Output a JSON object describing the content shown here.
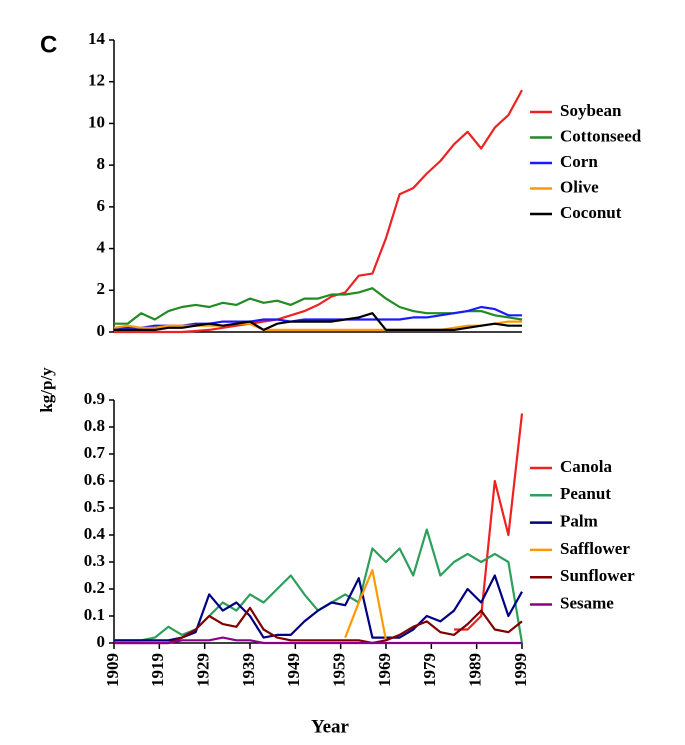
{
  "panel_label": "C",
  "y_label": "kg/p/y",
  "chart_data": [
    {
      "type": "line",
      "x": [
        1909,
        1912,
        1915,
        1918,
        1921,
        1924,
        1927,
        1930,
        1933,
        1936,
        1939,
        1942,
        1945,
        1948,
        1951,
        1954,
        1957,
        1960,
        1963,
        1966,
        1969,
        1972,
        1975,
        1978,
        1981,
        1984,
        1987,
        1990,
        1993,
        1996,
        1999
      ],
      "xlim": [
        1909,
        1999
      ],
      "ylim": [
        0,
        14
      ],
      "yticks": [
        0,
        2,
        4,
        6,
        8,
        10,
        12,
        14
      ],
      "series": [
        {
          "name": "Soybean",
          "color": "#ee2222",
          "values": [
            0,
            0,
            0,
            0,
            0,
            0,
            0.05,
            0.1,
            0.2,
            0.3,
            0.4,
            0.5,
            0.6,
            0.8,
            1.0,
            1.3,
            1.7,
            1.9,
            2.7,
            2.8,
            4.5,
            6.6,
            6.9,
            7.6,
            8.2,
            9.0,
            9.6,
            8.8,
            9.8,
            10.4,
            11.6
          ]
        },
        {
          "name": "Cottonseed",
          "color": "#228b22",
          "values": [
            0.4,
            0.4,
            0.9,
            0.6,
            1.0,
            1.2,
            1.3,
            1.2,
            1.4,
            1.3,
            1.6,
            1.4,
            1.5,
            1.3,
            1.6,
            1.6,
            1.8,
            1.8,
            1.9,
            2.1,
            1.6,
            1.2,
            1.0,
            0.9,
            0.9,
            0.9,
            1.0,
            1.0,
            0.8,
            0.7,
            0.6
          ]
        },
        {
          "name": "Corn",
          "color": "#1a1aff",
          "values": [
            0.2,
            0.2,
            0.2,
            0.3,
            0.3,
            0.3,
            0.4,
            0.4,
            0.5,
            0.5,
            0.5,
            0.6,
            0.6,
            0.5,
            0.6,
            0.6,
            0.6,
            0.6,
            0.6,
            0.6,
            0.6,
            0.6,
            0.7,
            0.7,
            0.8,
            0.9,
            1.0,
            1.2,
            1.1,
            0.8,
            0.8
          ]
        },
        {
          "name": "Olive",
          "color": "#ff9900",
          "values": [
            0.2,
            0.3,
            0.2,
            0.2,
            0.3,
            0.3,
            0.3,
            0.3,
            0.3,
            0.4,
            0.4,
            0.1,
            0.1,
            0.1,
            0.1,
            0.1,
            0.1,
            0.1,
            0.1,
            0.1,
            0.1,
            0.1,
            0.1,
            0.1,
            0.1,
            0.2,
            0.3,
            0.3,
            0.4,
            0.5,
            0.5
          ]
        },
        {
          "name": "Coconut",
          "color": "#000000",
          "values": [
            0.1,
            0.1,
            0.1,
            0.1,
            0.2,
            0.2,
            0.3,
            0.4,
            0.3,
            0.4,
            0.5,
            0.1,
            0.4,
            0.5,
            0.5,
            0.5,
            0.5,
            0.6,
            0.7,
            0.9,
            0.1,
            0.1,
            0.1,
            0.1,
            0.1,
            0.1,
            0.2,
            0.3,
            0.4,
            0.3,
            0.3
          ]
        }
      ]
    },
    {
      "type": "line",
      "x_label": "Year",
      "x": [
        1909,
        1912,
        1915,
        1918,
        1921,
        1924,
        1927,
        1930,
        1933,
        1936,
        1939,
        1942,
        1945,
        1948,
        1951,
        1954,
        1957,
        1960,
        1963,
        1966,
        1969,
        1972,
        1975,
        1978,
        1981,
        1984,
        1987,
        1990,
        1993,
        1996,
        1999
      ],
      "xlim": [
        1909,
        1999
      ],
      "xticks": [
        1909,
        1919,
        1929,
        1939,
        1949,
        1959,
        1969,
        1979,
        1989,
        1999
      ],
      "ylim": [
        0,
        0.9
      ],
      "yticks": [
        0,
        0.1,
        0.2,
        0.3,
        0.4,
        0.5,
        0.6,
        0.7,
        0.8,
        0.9
      ],
      "series": [
        {
          "name": "Canola",
          "color": "#ee2222",
          "values": [
            null,
            null,
            null,
            null,
            null,
            null,
            null,
            null,
            null,
            null,
            null,
            null,
            null,
            null,
            null,
            null,
            null,
            null,
            null,
            null,
            null,
            null,
            null,
            null,
            null,
            0.05,
            0.05,
            0.1,
            0.6,
            0.4,
            0.85
          ]
        },
        {
          "name": "Peanut",
          "color": "#2e9e5b",
          "values": [
            0.01,
            0.01,
            0.01,
            0.02,
            0.06,
            0.03,
            0.05,
            0.1,
            0.15,
            0.12,
            0.18,
            0.15,
            0.2,
            0.25,
            0.18,
            0.12,
            0.15,
            0.18,
            0.15,
            0.35,
            0.3,
            0.35,
            0.25,
            0.42,
            0.25,
            0.3,
            0.33,
            0.3,
            0.33,
            0.3,
            0
          ]
        },
        {
          "name": "Palm",
          "color": "#000080",
          "values": [
            0.01,
            0.01,
            0.01,
            0.01,
            0.01,
            0.02,
            0.04,
            0.18,
            0.12,
            0.15,
            0.1,
            0.02,
            0.03,
            0.03,
            0.08,
            0.12,
            0.15,
            0.14,
            0.24,
            0.02,
            0.02,
            0.02,
            0.05,
            0.1,
            0.08,
            0.12,
            0.2,
            0.15,
            0.25,
            0.1,
            0.19
          ]
        },
        {
          "name": "Safflower",
          "color": "#ff9900",
          "values": [
            null,
            null,
            null,
            null,
            null,
            null,
            null,
            null,
            null,
            null,
            null,
            null,
            null,
            null,
            null,
            null,
            null,
            0.02,
            0.15,
            0.27,
            0.01,
            null,
            null,
            null,
            null,
            null,
            null,
            null,
            null,
            null,
            null
          ]
        },
        {
          "name": "Sunflower",
          "color": "#800000",
          "values": [
            0,
            0,
            0,
            0,
            0,
            0.02,
            0.05,
            0.1,
            0.07,
            0.06,
            0.13,
            0.05,
            0.02,
            0.01,
            0.01,
            0.01,
            0.01,
            0.01,
            0.01,
            0,
            0.01,
            0.03,
            0.06,
            0.08,
            0.04,
            0.03,
            0.07,
            0.12,
            0.05,
            0.04,
            0.08
          ]
        },
        {
          "name": "Sesame",
          "color": "#8b008b",
          "values": [
            0,
            0,
            0,
            0,
            0,
            0.01,
            0.01,
            0.01,
            0.02,
            0.01,
            0.01,
            0,
            0,
            0,
            0,
            0,
            0,
            0,
            0,
            0,
            0,
            0,
            0,
            0,
            0,
            0,
            0,
            0,
            0,
            0,
            0
          ]
        }
      ]
    }
  ]
}
